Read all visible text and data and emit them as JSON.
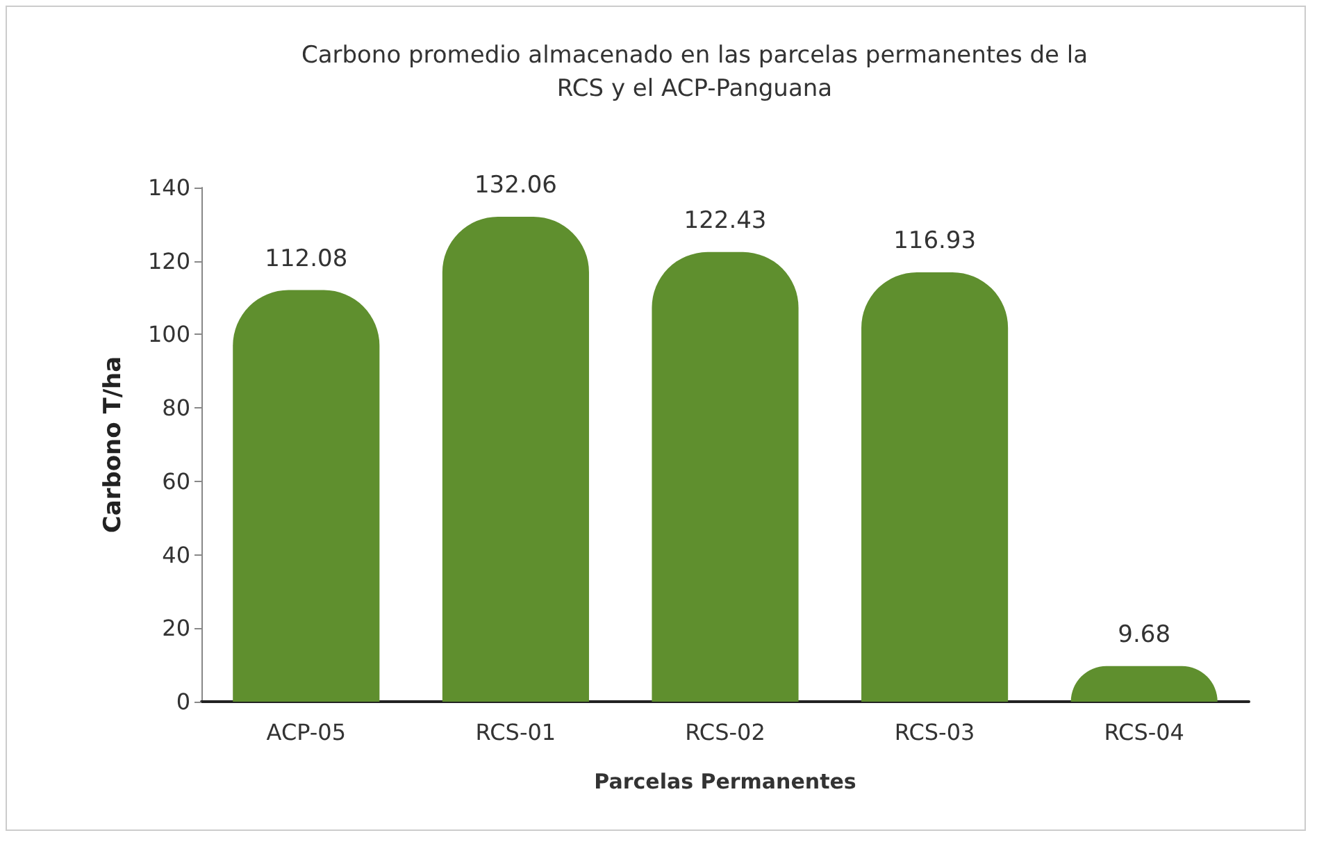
{
  "chart_data": {
    "type": "bar",
    "title": "Carbono promedio almacenado en las parcelas permanentes de la\nRCS y el ACP-Panguana",
    "xlabel": "Parcelas Permanentes",
    "ylabel": "Carbono T/ha",
    "categories": [
      "ACP-05",
      "RCS-01",
      "RCS-02",
      "RCS-03",
      "RCS-04"
    ],
    "values": [
      112.08,
      132.06,
      122.43,
      116.93,
      9.68
    ],
    "color": "#5f8f2e",
    "ylim": [
      0,
      140
    ],
    "yticks": [
      0,
      20,
      40,
      60,
      80,
      100,
      120,
      140
    ],
    "grid": false,
    "data_labels": true
  }
}
